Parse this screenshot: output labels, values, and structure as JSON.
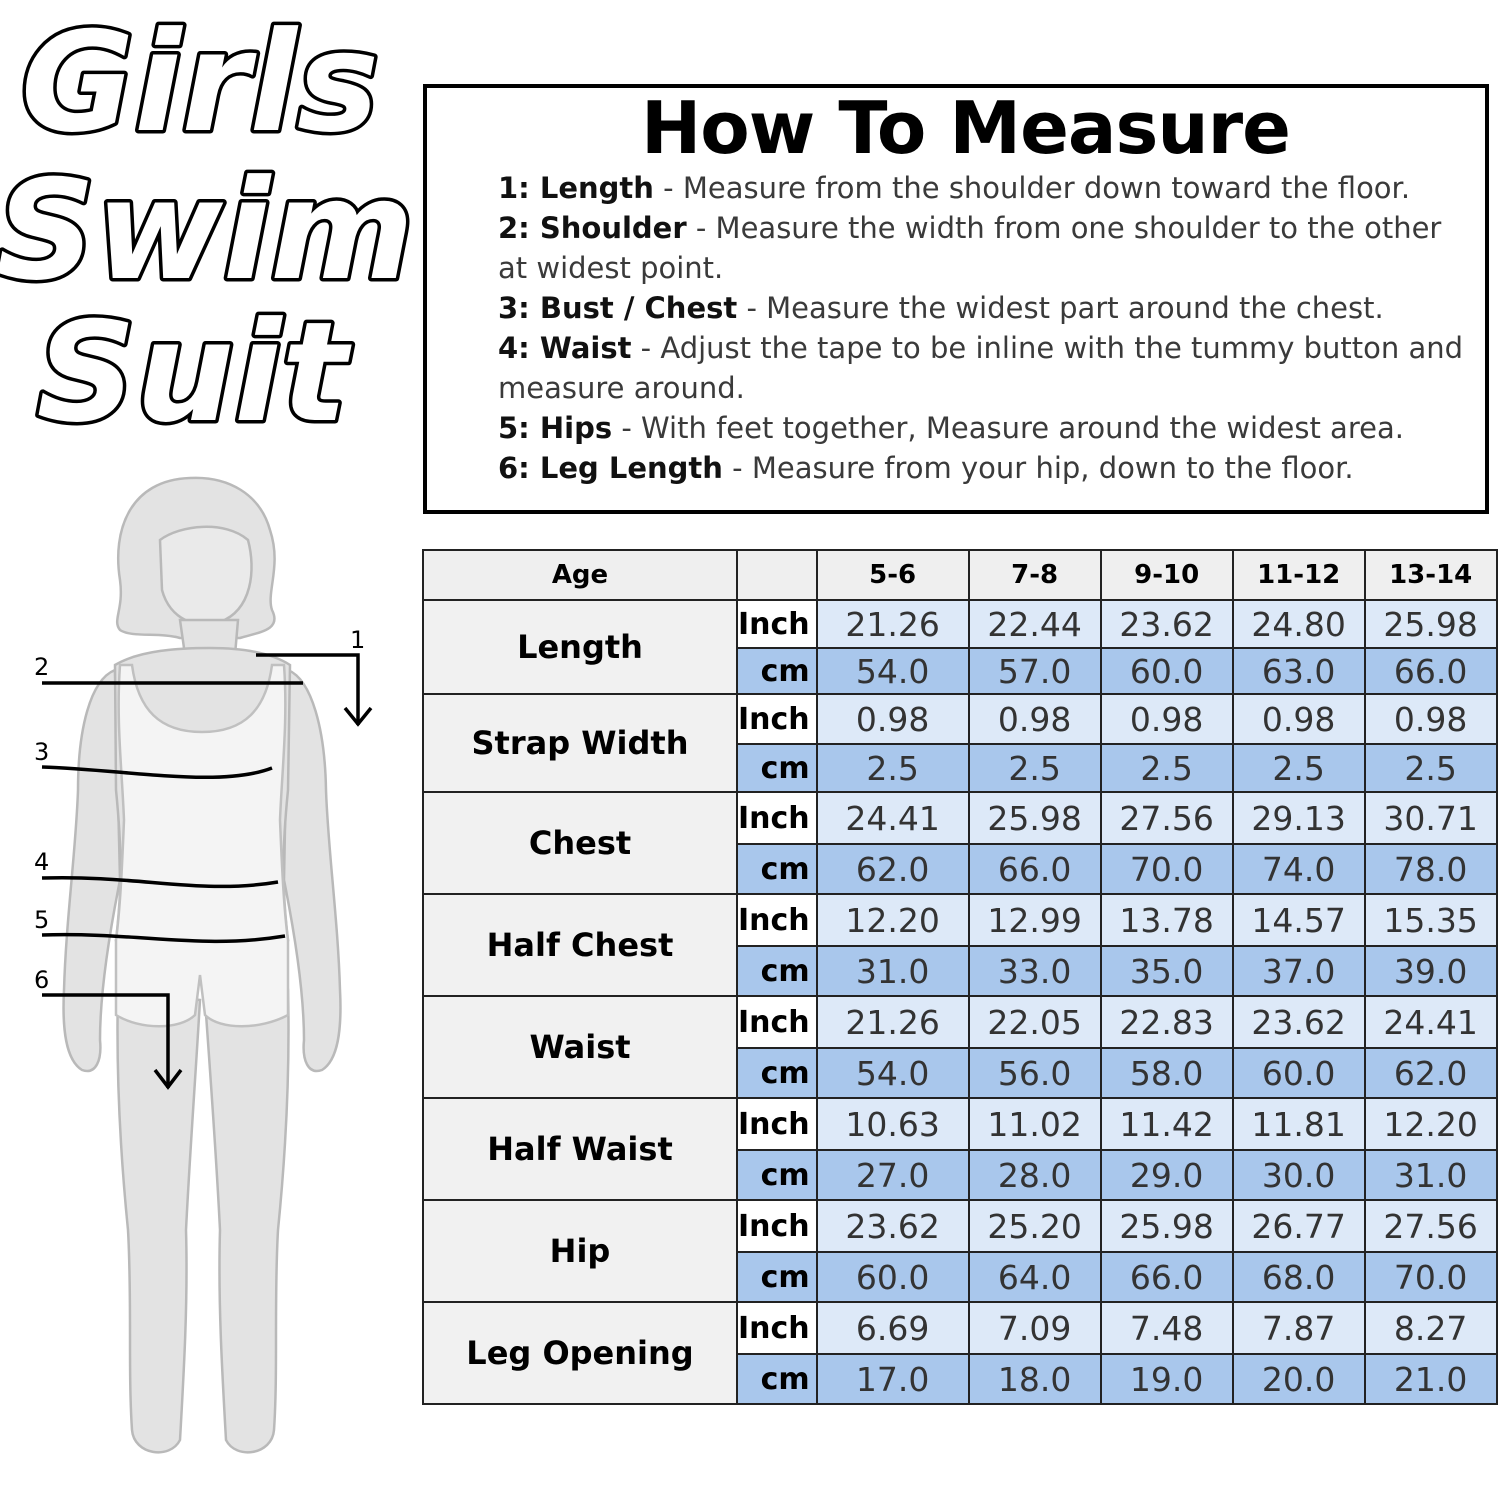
{
  "title": {
    "lines": [
      "Girls",
      "Swim",
      "Suit"
    ]
  },
  "figure": {
    "markers": [
      "1",
      "2",
      "3",
      "4",
      "5",
      "6"
    ]
  },
  "how_to_measure": {
    "heading": "How To Measure",
    "steps": [
      {
        "label": "1: Length",
        "text": " - Measure from the shoulder down toward the floor."
      },
      {
        "label": "2: Shoulder",
        "text": "  - Measure the width from one shoulder to the other at widest point."
      },
      {
        "label": "3: Bust / Chest",
        "text": " - Measure the widest part around the chest."
      },
      {
        "label": "4: Waist",
        "text": " - Adjust the tape to be inline with the tummy button and measure around."
      },
      {
        "label": "5: Hips",
        "text": " - With feet together, Measure around the widest area."
      },
      {
        "label": "6: Leg Length",
        "text": " - Measure from your hip, down to the floor."
      }
    ]
  },
  "size_table": {
    "header": {
      "label": "Age",
      "unit": "",
      "ages": [
        "5-6",
        "7-8",
        "9-10",
        "11-12",
        "13-14"
      ]
    },
    "units": {
      "inch": "Inch",
      "cm": "cm"
    },
    "rows": [
      {
        "name": "Length",
        "inch": [
          "21.26",
          "22.44",
          "23.62",
          "24.80",
          "25.98"
        ],
        "cm": [
          "54.0",
          "57.0",
          "60.0",
          "63.0",
          "66.0"
        ]
      },
      {
        "name": "Strap Width",
        "inch": [
          "0.98",
          "0.98",
          "0.98",
          "0.98",
          "0.98"
        ],
        "cm": [
          "2.5",
          "2.5",
          "2.5",
          "2.5",
          "2.5"
        ]
      },
      {
        "name": "Chest",
        "inch": [
          "24.41",
          "25.98",
          "27.56",
          "29.13",
          "30.71"
        ],
        "cm": [
          "62.0",
          "66.0",
          "70.0",
          "74.0",
          "78.0"
        ]
      },
      {
        "name": "Half Chest",
        "inch": [
          "12.20",
          "12.99",
          "13.78",
          "14.57",
          "15.35"
        ],
        "cm": [
          "31.0",
          "33.0",
          "35.0",
          "37.0",
          "39.0"
        ]
      },
      {
        "name": "Waist",
        "inch": [
          "21.26",
          "22.05",
          "22.83",
          "23.62",
          "24.41"
        ],
        "cm": [
          "54.0",
          "56.0",
          "58.0",
          "60.0",
          "62.0"
        ]
      },
      {
        "name": "Half Waist",
        "inch": [
          "10.63",
          "11.02",
          "11.42",
          "11.81",
          "12.20"
        ],
        "cm": [
          "27.0",
          "28.0",
          "29.0",
          "30.0",
          "31.0"
        ]
      },
      {
        "name": "Hip",
        "inch": [
          "23.62",
          "25.20",
          "25.98",
          "26.77",
          "27.56"
        ],
        "cm": [
          "60.0",
          "64.0",
          "66.0",
          "68.0",
          "70.0"
        ]
      },
      {
        "name": "Leg Opening",
        "inch": [
          "6.69",
          "7.09",
          "7.48",
          "7.87",
          "8.27"
        ],
        "cm": [
          "17.0",
          "18.0",
          "19.0",
          "20.0",
          "21.0"
        ]
      }
    ]
  }
}
